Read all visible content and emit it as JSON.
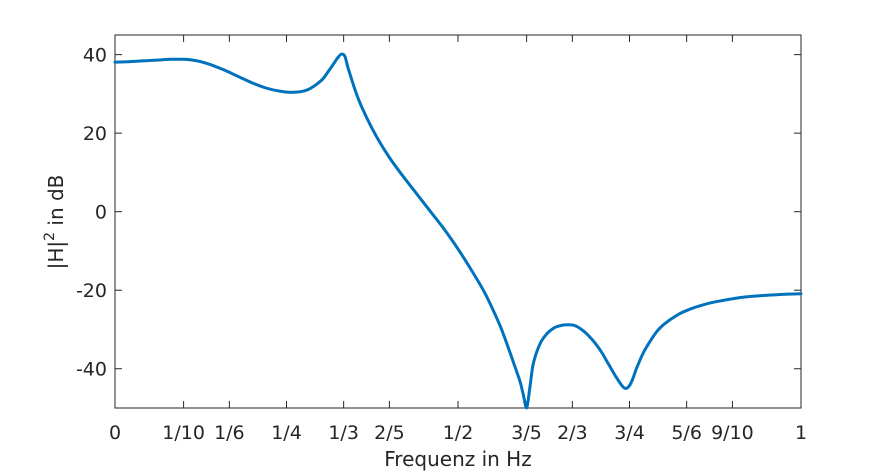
{
  "chart_data": {
    "type": "line",
    "title": "",
    "xlabel": "Frequenz in Hz",
    "ylabel": {
      "base": "|H|",
      "sup": "2",
      "rest": " in dB"
    },
    "xlim": [
      0,
      1
    ],
    "ylim": [
      -50,
      45
    ],
    "grid": false,
    "x_ticks": [
      {
        "value": 0,
        "label": "0"
      },
      {
        "value": 0.1,
        "label": "1/10"
      },
      {
        "value": 0.1667,
        "label": "1/6"
      },
      {
        "value": 0.25,
        "label": "1/4"
      },
      {
        "value": 0.3333,
        "label": "1/3"
      },
      {
        "value": 0.4,
        "label": "2/5"
      },
      {
        "value": 0.5,
        "label": "1/2"
      },
      {
        "value": 0.6,
        "label": "3/5"
      },
      {
        "value": 0.6667,
        "label": "2/3"
      },
      {
        "value": 0.75,
        "label": "3/4"
      },
      {
        "value": 0.8333,
        "label": "5/6"
      },
      {
        "value": 0.9,
        "label": "9/10"
      },
      {
        "value": 1,
        "label": "1"
      }
    ],
    "y_ticks": [
      {
        "value": 40,
        "label": "40"
      },
      {
        "value": 20,
        "label": "20"
      },
      {
        "value": 0,
        "label": "0"
      },
      {
        "value": -20,
        "label": "-20"
      },
      {
        "value": -40,
        "label": "-40"
      }
    ],
    "series": [
      {
        "name": "|H|^2",
        "color": "#0072bd",
        "x": [
          0,
          0.02,
          0.04,
          0.06,
          0.08,
          0.1,
          0.12,
          0.14,
          0.16,
          0.18,
          0.2,
          0.22,
          0.24,
          0.26,
          0.28,
          0.3,
          0.31,
          0.32,
          0.325,
          0.33,
          0.335,
          0.34,
          0.35,
          0.36,
          0.38,
          0.4,
          0.42,
          0.44,
          0.46,
          0.48,
          0.5,
          0.52,
          0.54,
          0.56,
          0.57,
          0.58,
          0.59,
          0.595,
          0.6,
          0.605,
          0.61,
          0.62,
          0.63,
          0.64,
          0.65,
          0.66,
          0.67,
          0.68,
          0.69,
          0.7,
          0.71,
          0.72,
          0.73,
          0.74,
          0.745,
          0.75,
          0.755,
          0.76,
          0.77,
          0.78,
          0.79,
          0.8,
          0.82,
          0.84,
          0.86,
          0.88,
          0.9,
          0.92,
          0.94,
          0.96,
          0.98,
          1.0
        ],
        "y": [
          38.1,
          38.2,
          38.4,
          38.6,
          38.8,
          38.8,
          38.4,
          37.4,
          36.0,
          34.4,
          32.8,
          31.5,
          30.7,
          30.4,
          31.0,
          33.3,
          35.5,
          38.0,
          39.3,
          40.1,
          39.6,
          36.5,
          31.0,
          26.5,
          19.5,
          13.8,
          9.0,
          4.5,
          0.0,
          -4.5,
          -9.5,
          -15.0,
          -21.0,
          -28.5,
          -33.0,
          -38.0,
          -43.0,
          -46.5,
          -50.0,
          -44.5,
          -38.5,
          -33.5,
          -31.0,
          -29.6,
          -29.0,
          -28.8,
          -29.0,
          -30.0,
          -31.5,
          -33.5,
          -36.0,
          -39.0,
          -42.0,
          -44.5,
          -45.0,
          -44.3,
          -42.5,
          -40.0,
          -36.0,
          -33.0,
          -30.5,
          -28.7,
          -26.3,
          -24.7,
          -23.6,
          -22.8,
          -22.2,
          -21.7,
          -21.4,
          -21.2,
          -21.0,
          -20.9
        ]
      }
    ]
  }
}
